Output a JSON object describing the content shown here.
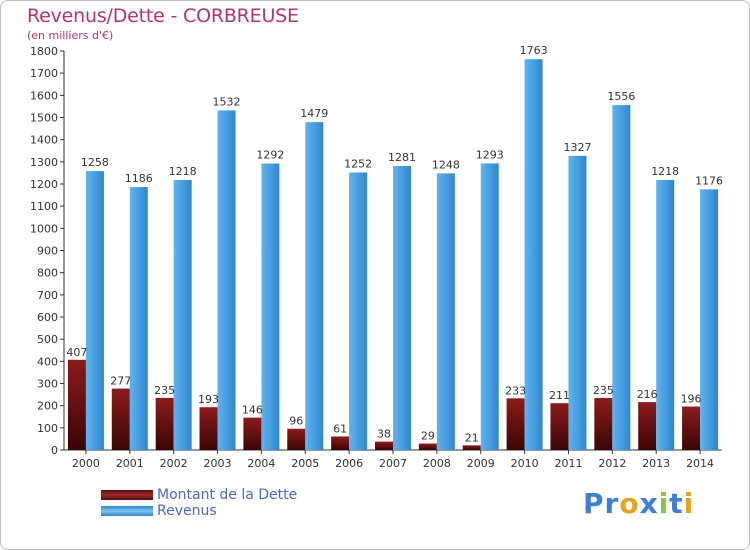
{
  "page": {
    "title": "Revenus/Dette - CORBREUSE",
    "subtitle": "(en milliers d'€)",
    "logo_letters": [
      {
        "ch": "P",
        "color": "#3b7fd6"
      },
      {
        "ch": "r",
        "color": "#3b7fd6"
      },
      {
        "ch": "o",
        "color": "#e8a21e"
      },
      {
        "ch": "x",
        "color": "#3b7fd6"
      },
      {
        "ch": "i",
        "color": "#8cc63f"
      },
      {
        "ch": "t",
        "color": "#3b7fd6"
      },
      {
        "ch": "i",
        "color": "#e8a21e"
      }
    ]
  },
  "chart_data": {
    "type": "bar",
    "title": "Revenus/Dette - CORBREUSE",
    "subtitle": "(en milliers d'€)",
    "categories": [
      "2000",
      "2001",
      "2002",
      "2003",
      "2004",
      "2005",
      "2006",
      "2007",
      "2008",
      "2009",
      "2010",
      "2011",
      "2012",
      "2013",
      "2014"
    ],
    "series": [
      {
        "name": "Montant de la Dette",
        "color": "#7a1212",
        "values": [
          407,
          277,
          235,
          193,
          146,
          96,
          61,
          38,
          29,
          21,
          233,
          211,
          235,
          216,
          196
        ]
      },
      {
        "name": "Revenus",
        "color": "#4aa3e6",
        "values": [
          1258,
          1186,
          1218,
          1532,
          1292,
          1479,
          1252,
          1281,
          1248,
          1293,
          1763,
          1327,
          1556,
          1218,
          1176
        ]
      }
    ],
    "ylim": [
      0,
      1800
    ],
    "yticks": [
      0,
      100,
      200,
      300,
      400,
      500,
      600,
      700,
      800,
      900,
      1000,
      1100,
      1200,
      1300,
      1400,
      1500,
      1600,
      1700,
      1800
    ],
    "grid": false,
    "legend_position": "bottom-left"
  }
}
